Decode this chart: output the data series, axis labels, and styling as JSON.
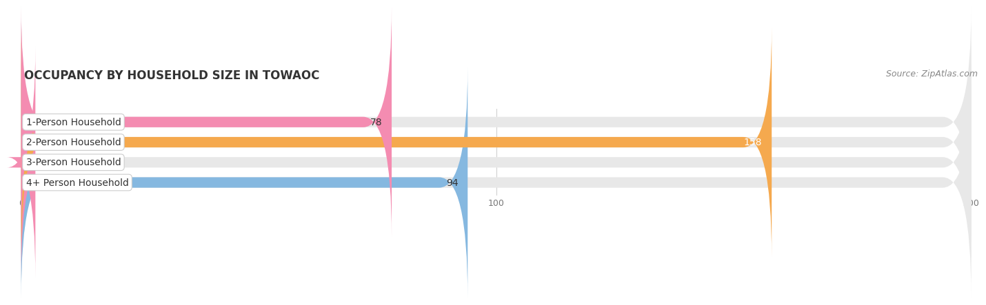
{
  "title": "OCCUPANCY BY HOUSEHOLD SIZE IN TOWAOC",
  "source": "Source: ZipAtlas.com",
  "categories": [
    "1-Person Household",
    "2-Person Household",
    "3-Person Household",
    "4+ Person Household"
  ],
  "values": [
    78,
    158,
    0,
    94
  ],
  "bar_colors": [
    "#f48cb1",
    "#f5a94e",
    "#f48cb1",
    "#85b8e0"
  ],
  "label_colors": [
    "#333333",
    "#ffffff",
    "#333333",
    "#333333"
  ],
  "value_inside_color": [
    "#333333",
    "#ffffff",
    "#333333",
    "#333333"
  ],
  "xlim": [
    0,
    200
  ],
  "xticks": [
    0,
    100,
    200
  ],
  "background_color": "#ffffff",
  "bar_bg_color": "#e8e8e8",
  "title_fontsize": 12,
  "source_fontsize": 9,
  "cat_fontsize": 10,
  "value_fontsize": 10,
  "bar_height": 0.52,
  "label_box_color": "#ffffff",
  "label_box_edge": "#cccccc"
}
